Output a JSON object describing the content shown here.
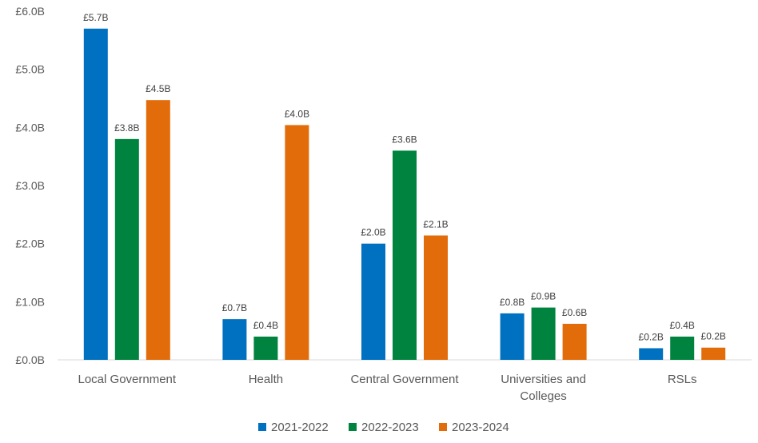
{
  "chart_data": {
    "type": "bar",
    "title": "",
    "xlabel": "",
    "ylabel": "",
    "categories": [
      [
        "Local Government"
      ],
      [
        "Health"
      ],
      [
        "Central Government"
      ],
      [
        "Universities and",
        "Colleges"
      ],
      [
        "RSLs"
      ]
    ],
    "yticks": [
      0,
      1,
      2,
      3,
      4,
      5,
      6
    ],
    "ytick_labels": [
      "£0.0B",
      "£1.0B",
      "£2.0B",
      "£3.0B",
      "£4.0B",
      "£5.0B",
      "£6.0B"
    ],
    "ylim": [
      0,
      6
    ],
    "grid": false,
    "legend_position": "bottom",
    "series": [
      {
        "name": "2021-2022",
        "color": "#0070C0",
        "values": [
          5.7,
          0.7,
          2.0,
          0.8,
          0.2
        ],
        "labels": [
          "£5.7B",
          "£0.7B",
          "£2.0B",
          "£0.8B",
          "£0.2B"
        ]
      },
      {
        "name": "2022-2023",
        "color": "#00833E",
        "values": [
          3.8,
          0.4,
          3.6,
          0.9,
          0.4
        ],
        "labels": [
          "£3.8B",
          "£0.4B",
          "£3.6B",
          "£0.9B",
          "£0.4B"
        ]
      },
      {
        "name": "2023-2024",
        "color": "#E36C0A",
        "values": [
          4.47,
          4.04,
          2.14,
          0.62,
          0.21
        ],
        "labels": [
          "£4.5B",
          "£4.0B",
          "£2.1B",
          "£0.6B",
          "£0.2B"
        ]
      }
    ]
  }
}
